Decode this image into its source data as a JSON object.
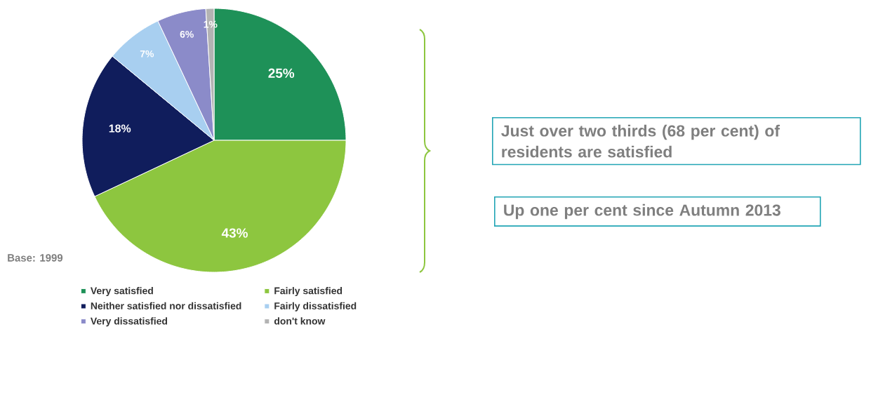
{
  "chart_data": {
    "type": "pie",
    "categories": [
      "Very satisfied",
      "Fairly satisfied",
      "Neither satisfied nor dissatisfied",
      "Fairly dissatisfied",
      "Very dissatisfied",
      "don't know"
    ],
    "values": [
      25,
      43,
      18,
      7,
      6,
      1
    ],
    "value_labels": [
      "25%",
      "43%",
      "18%",
      "7%",
      "6%",
      "1%"
    ],
    "colors": [
      "#1e9158",
      "#8dc63f",
      "#101d5c",
      "#a8cff0",
      "#8b8bc9",
      "#b3b3b3"
    ],
    "legend": "bottom",
    "annotations": [
      "Base: 1999",
      "Just over two thirds (68 per cent) of residents are satisfied",
      "Up one per cent since Autumn 2013"
    ]
  }
}
